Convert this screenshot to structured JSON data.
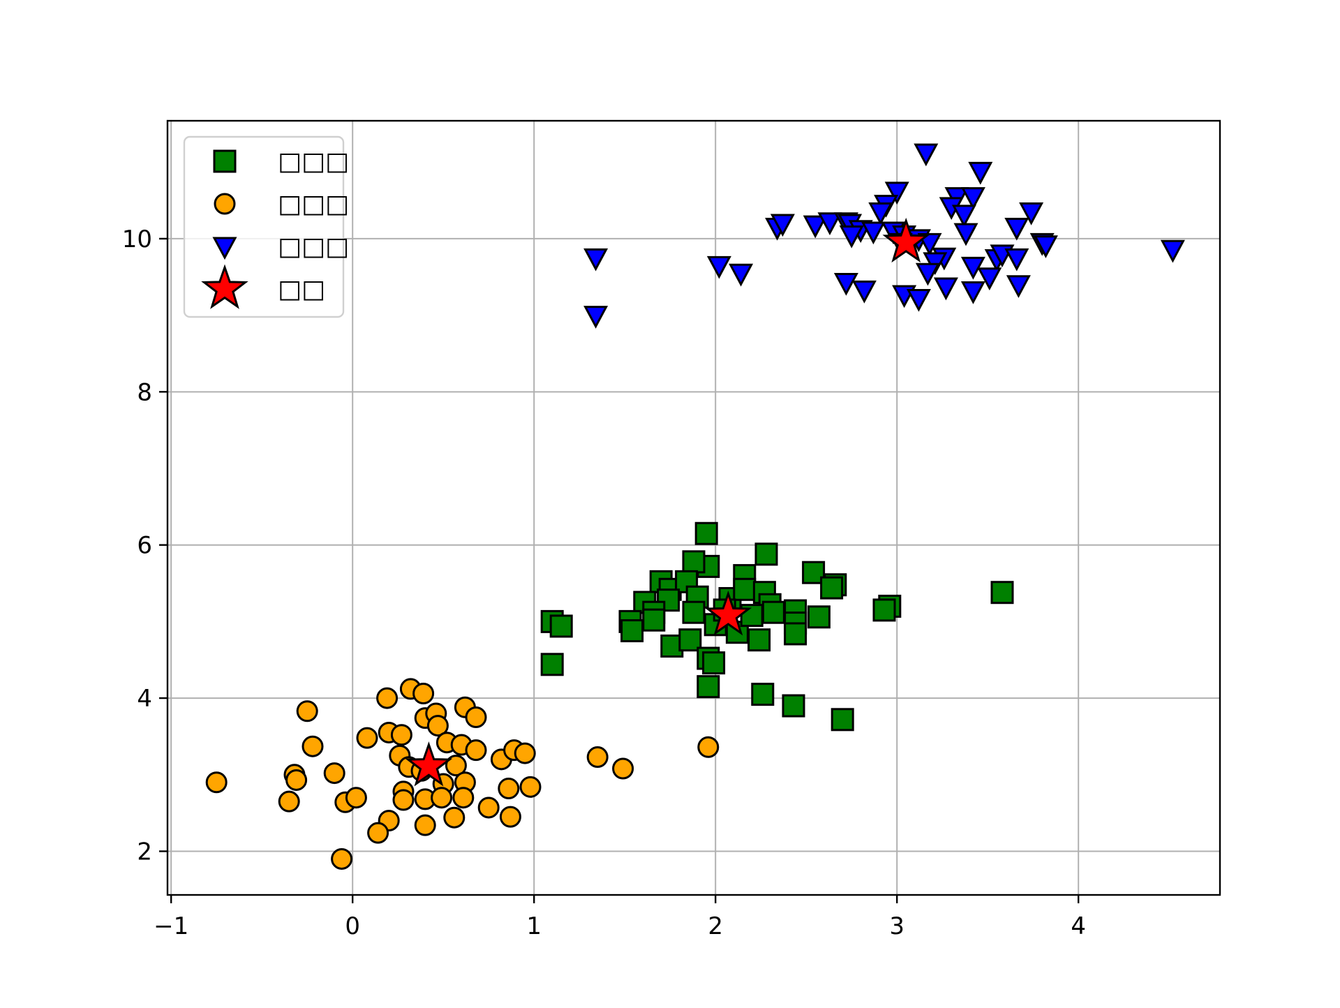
{
  "chart_data": {
    "type": "scatter",
    "title": "",
    "xlabel": "",
    "ylabel": "",
    "xlim": [
      -1.02,
      4.78
    ],
    "ylim": [
      1.43,
      11.54
    ],
    "grid": true,
    "legend_position": "upper left",
    "xticks": [
      -1,
      0,
      1,
      2,
      3,
      4
    ],
    "xtick_labels": [
      "−1",
      "0",
      "1",
      "2",
      "3",
      "4"
    ],
    "yticks": [
      2,
      4,
      6,
      8,
      10
    ],
    "ytick_labels": [
      "2",
      "4",
      "6",
      "8",
      "10"
    ],
    "series": [
      {
        "name": "□□□",
        "marker": "square",
        "color": "#008000",
        "edgecolor": "#000000",
        "points": [
          [
            1.95,
            6.15
          ],
          [
            1.96,
            5.72
          ],
          [
            1.88,
            5.78
          ],
          [
            2.28,
            5.88
          ],
          [
            2.16,
            5.6
          ],
          [
            2.54,
            5.64
          ],
          [
            2.66,
            5.48
          ],
          [
            2.64,
            5.44
          ],
          [
            1.7,
            5.52
          ],
          [
            1.75,
            5.42
          ],
          [
            1.84,
            5.52
          ],
          [
            1.61,
            5.25
          ],
          [
            1.74,
            5.28
          ],
          [
            1.9,
            5.32
          ],
          [
            2.08,
            5.3
          ],
          [
            2.16,
            5.42
          ],
          [
            2.27,
            5.38
          ],
          [
            2.3,
            5.22
          ],
          [
            2.32,
            5.12
          ],
          [
            2.44,
            5.14
          ],
          [
            2.57,
            5.06
          ],
          [
            2.44,
            4.98
          ],
          [
            2.44,
            4.84
          ],
          [
            1.66,
            5.12
          ],
          [
            1.53,
            5.0
          ],
          [
            1.54,
            4.88
          ],
          [
            1.66,
            5.02
          ],
          [
            1.88,
            5.12
          ],
          [
            2.0,
            4.96
          ],
          [
            2.12,
            4.86
          ],
          [
            2.24,
            4.76
          ],
          [
            1.76,
            4.68
          ],
          [
            1.86,
            4.76
          ],
          [
            1.96,
            4.52
          ],
          [
            1.99,
            4.46
          ],
          [
            1.96,
            4.15
          ],
          [
            2.26,
            4.05
          ],
          [
            2.43,
            3.9
          ],
          [
            2.7,
            3.72
          ],
          [
            1.1,
            5.0
          ],
          [
            1.15,
            4.94
          ],
          [
            1.1,
            4.44
          ],
          [
            2.96,
            5.2
          ],
          [
            2.93,
            5.15
          ],
          [
            3.58,
            5.38
          ],
          [
            2.05,
            5.15
          ],
          [
            2.2,
            5.08
          ]
        ]
      },
      {
        "name": "□□□",
        "marker": "circle",
        "color": "#FFA500",
        "edgecolor": "#000000",
        "points": [
          [
            -0.75,
            2.9
          ],
          [
            -0.25,
            3.83
          ],
          [
            -0.22,
            3.37
          ],
          [
            -0.32,
            3.0
          ],
          [
            -0.31,
            2.93
          ],
          [
            -0.35,
            2.65
          ],
          [
            -0.1,
            3.02
          ],
          [
            -0.04,
            2.64
          ],
          [
            0.02,
            2.7
          ],
          [
            -0.06,
            1.9
          ],
          [
            0.08,
            3.48
          ],
          [
            0.2,
            3.55
          ],
          [
            0.19,
            4.0
          ],
          [
            0.32,
            4.12
          ],
          [
            0.39,
            4.06
          ],
          [
            0.4,
            3.74
          ],
          [
            0.46,
            3.8
          ],
          [
            0.47,
            3.64
          ],
          [
            0.52,
            3.42
          ],
          [
            0.27,
            3.52
          ],
          [
            0.26,
            3.25
          ],
          [
            0.31,
            3.1
          ],
          [
            0.38,
            3.05
          ],
          [
            0.57,
            3.12
          ],
          [
            0.6,
            3.39
          ],
          [
            0.68,
            3.32
          ],
          [
            0.62,
            3.88
          ],
          [
            0.68,
            3.75
          ],
          [
            0.5,
            2.88
          ],
          [
            0.62,
            2.9
          ],
          [
            0.28,
            2.78
          ],
          [
            0.28,
            2.67
          ],
          [
            0.4,
            2.68
          ],
          [
            0.49,
            2.7
          ],
          [
            0.61,
            2.7
          ],
          [
            0.75,
            2.57
          ],
          [
            0.56,
            2.44
          ],
          [
            0.4,
            2.34
          ],
          [
            0.2,
            2.4
          ],
          [
            0.14,
            2.24
          ],
          [
            0.82,
            3.2
          ],
          [
            0.89,
            3.32
          ],
          [
            0.95,
            3.28
          ],
          [
            0.86,
            2.82
          ],
          [
            0.98,
            2.84
          ],
          [
            0.87,
            2.45
          ],
          [
            1.35,
            3.23
          ],
          [
            1.49,
            3.08
          ],
          [
            1.96,
            3.36
          ]
        ]
      },
      {
        "name": "□□□",
        "marker": "triangle_down",
        "color": "#0000FF",
        "edgecolor": "#000000",
        "points": [
          [
            3.16,
            11.12
          ],
          [
            3.46,
            10.88
          ],
          [
            3.0,
            10.62
          ],
          [
            2.94,
            10.45
          ],
          [
            2.91,
            10.35
          ],
          [
            3.33,
            10.55
          ],
          [
            3.42,
            10.55
          ],
          [
            3.3,
            10.42
          ],
          [
            3.37,
            10.32
          ],
          [
            3.74,
            10.35
          ],
          [
            3.66,
            10.15
          ],
          [
            2.34,
            10.15
          ],
          [
            2.37,
            10.2
          ],
          [
            2.55,
            10.18
          ],
          [
            2.63,
            10.22
          ],
          [
            2.72,
            10.22
          ],
          [
            2.74,
            10.2
          ],
          [
            2.8,
            10.12
          ],
          [
            2.75,
            10.05
          ],
          [
            2.87,
            10.1
          ],
          [
            2.98,
            10.1
          ],
          [
            3.04,
            10.05
          ],
          [
            3.12,
            10.0
          ],
          [
            3.38,
            10.08
          ],
          [
            3.02,
            9.95
          ],
          [
            3.18,
            9.95
          ],
          [
            3.8,
            9.95
          ],
          [
            3.82,
            9.92
          ],
          [
            4.52,
            9.86
          ],
          [
            3.26,
            9.76
          ],
          [
            3.21,
            9.7
          ],
          [
            3.17,
            9.56
          ],
          [
            3.42,
            9.64
          ],
          [
            3.55,
            9.74
          ],
          [
            3.58,
            9.8
          ],
          [
            3.66,
            9.75
          ],
          [
            2.72,
            9.43
          ],
          [
            2.82,
            9.33
          ],
          [
            3.04,
            9.27
          ],
          [
            3.12,
            9.22
          ],
          [
            3.27,
            9.37
          ],
          [
            3.42,
            9.32
          ],
          [
            3.51,
            9.5
          ],
          [
            3.67,
            9.4
          ],
          [
            1.34,
            9.75
          ],
          [
            1.34,
            9.0
          ],
          [
            2.02,
            9.65
          ],
          [
            2.14,
            9.55
          ]
        ]
      },
      {
        "name": "□□",
        "marker": "star",
        "color": "#FF0000",
        "edgecolor": "#000000",
        "points": [
          [
            2.07,
            5.08
          ],
          [
            0.42,
            3.11
          ],
          [
            3.05,
            9.95
          ]
        ]
      }
    ]
  }
}
